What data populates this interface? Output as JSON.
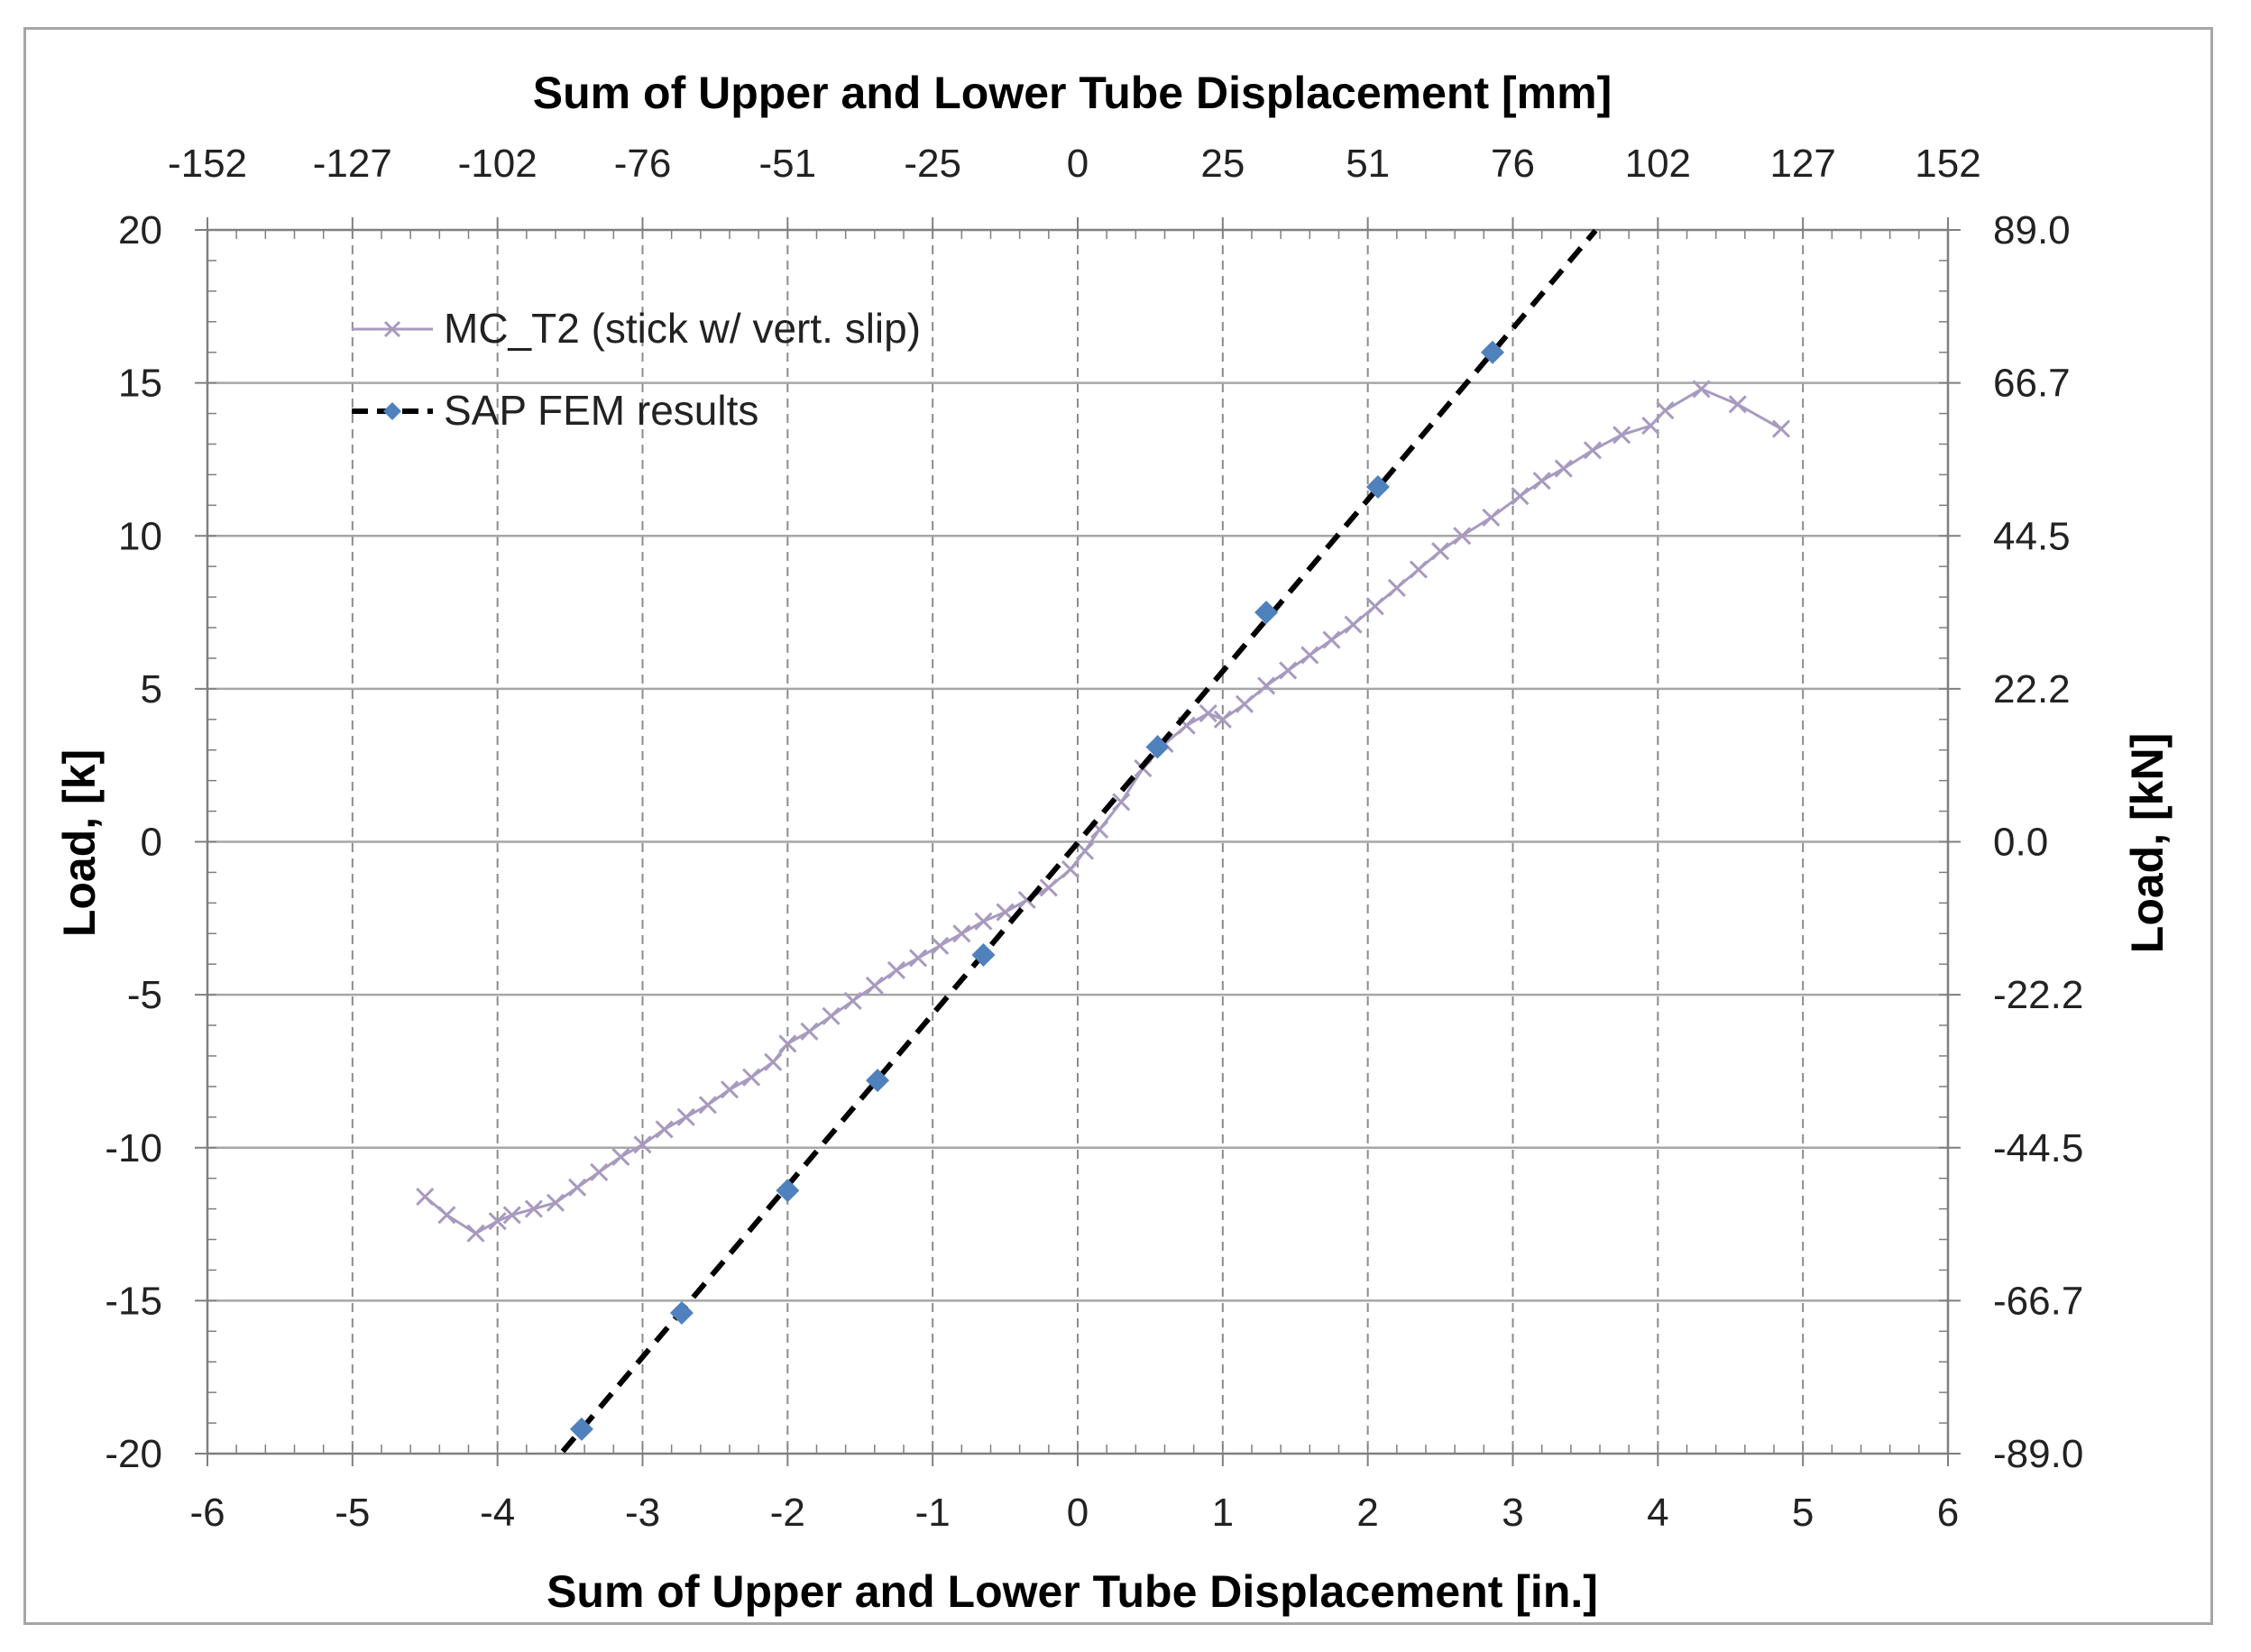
{
  "chart_data": {
    "type": "line",
    "x_bottom": {
      "label": "Sum of Upper and Lower Tube Displacement [in.]",
      "min": -6,
      "max": 6,
      "ticks": [
        "-6",
        "-5",
        "-4",
        "-3",
        "-2",
        "-1",
        "0",
        "1",
        "2",
        "3",
        "4",
        "5",
        "6"
      ]
    },
    "x_top": {
      "label": "Sum of Upper and Lower Tube Displacement [mm]",
      "ticks": [
        "-152",
        "-127",
        "-102",
        "-76",
        "-51",
        "-25",
        "0",
        "25",
        "51",
        "76",
        "102",
        "127",
        "152"
      ]
    },
    "y_left": {
      "label": "Load, [k]",
      "min": -20,
      "max": 20,
      "ticks": [
        "20",
        "15",
        "10",
        "5",
        "0",
        "-5",
        "-10",
        "-15",
        "-20"
      ]
    },
    "y_right": {
      "label": "Load, [kN]",
      "ticks": [
        "89.0",
        "66.7",
        "44.5",
        "22.2",
        "0.0",
        "-22.2",
        "-44.5",
        "-66.7",
        "-89.0"
      ]
    },
    "grid": {
      "horizontal": "solid",
      "vertical": "dashed"
    },
    "legend_position": "top-left",
    "series": [
      {
        "name": "MC_T2 (stick w/ vert. slip)",
        "color": "#a89abf",
        "marker": "x",
        "line": "solid",
        "points": [
          [
            -4.5,
            -11.6
          ],
          [
            -4.35,
            -12.2
          ],
          [
            -4.15,
            -12.8
          ],
          [
            -4.0,
            -12.4
          ],
          [
            -3.9,
            -12.2
          ],
          [
            -3.75,
            -12.0
          ],
          [
            -3.6,
            -11.8
          ],
          [
            -3.45,
            -11.3
          ],
          [
            -3.3,
            -10.8
          ],
          [
            -3.15,
            -10.3
          ],
          [
            -3.0,
            -9.9
          ],
          [
            -2.85,
            -9.4
          ],
          [
            -2.7,
            -9.0
          ],
          [
            -2.55,
            -8.6
          ],
          [
            -2.4,
            -8.1
          ],
          [
            -2.25,
            -7.7
          ],
          [
            -2.1,
            -7.2
          ],
          [
            -2.0,
            -6.6
          ],
          [
            -1.85,
            -6.2
          ],
          [
            -1.7,
            -5.7
          ],
          [
            -1.55,
            -5.2
          ],
          [
            -1.4,
            -4.7
          ],
          [
            -1.25,
            -4.2
          ],
          [
            -1.1,
            -3.8
          ],
          [
            -0.95,
            -3.4
          ],
          [
            -0.8,
            -3.0
          ],
          [
            -0.65,
            -2.6
          ],
          [
            -0.5,
            -2.3
          ],
          [
            -0.35,
            -1.9
          ],
          [
            -0.2,
            -1.5
          ],
          [
            -0.05,
            -0.9
          ],
          [
            0.05,
            -0.3
          ],
          [
            0.15,
            0.4
          ],
          [
            0.3,
            1.3
          ],
          [
            0.45,
            2.4
          ],
          [
            0.6,
            3.2
          ],
          [
            0.75,
            3.8
          ],
          [
            0.9,
            4.2
          ],
          [
            1.0,
            4.0
          ],
          [
            1.15,
            4.5
          ],
          [
            1.3,
            5.1
          ],
          [
            1.45,
            5.6
          ],
          [
            1.6,
            6.1
          ],
          [
            1.75,
            6.6
          ],
          [
            1.9,
            7.1
          ],
          [
            2.05,
            7.7
          ],
          [
            2.2,
            8.3
          ],
          [
            2.35,
            8.9
          ],
          [
            2.5,
            9.5
          ],
          [
            2.65,
            10.0
          ],
          [
            2.85,
            10.6
          ],
          [
            3.05,
            11.3
          ],
          [
            3.2,
            11.8
          ],
          [
            3.35,
            12.2
          ],
          [
            3.55,
            12.8
          ],
          [
            3.75,
            13.3
          ],
          [
            3.95,
            13.6
          ],
          [
            4.05,
            14.1
          ],
          [
            4.3,
            14.8
          ],
          [
            4.55,
            14.3
          ],
          [
            4.85,
            13.5
          ]
        ]
      },
      {
        "name": "SAP FEM results",
        "color": "#000000",
        "marker_color": "#4f81bd",
        "marker": "diamond",
        "line": "dashed",
        "line_x": [
          -3.55,
          3.57
        ],
        "points": [
          [
            -3.42,
            -19.2
          ],
          [
            -2.73,
            -15.4
          ],
          [
            -2.0,
            -11.4
          ],
          [
            -1.38,
            -7.8
          ],
          [
            -0.65,
            -3.7
          ],
          [
            0.55,
            3.1
          ],
          [
            1.3,
            7.5
          ],
          [
            2.07,
            11.6
          ],
          [
            2.86,
            16.0
          ]
        ]
      }
    ]
  }
}
